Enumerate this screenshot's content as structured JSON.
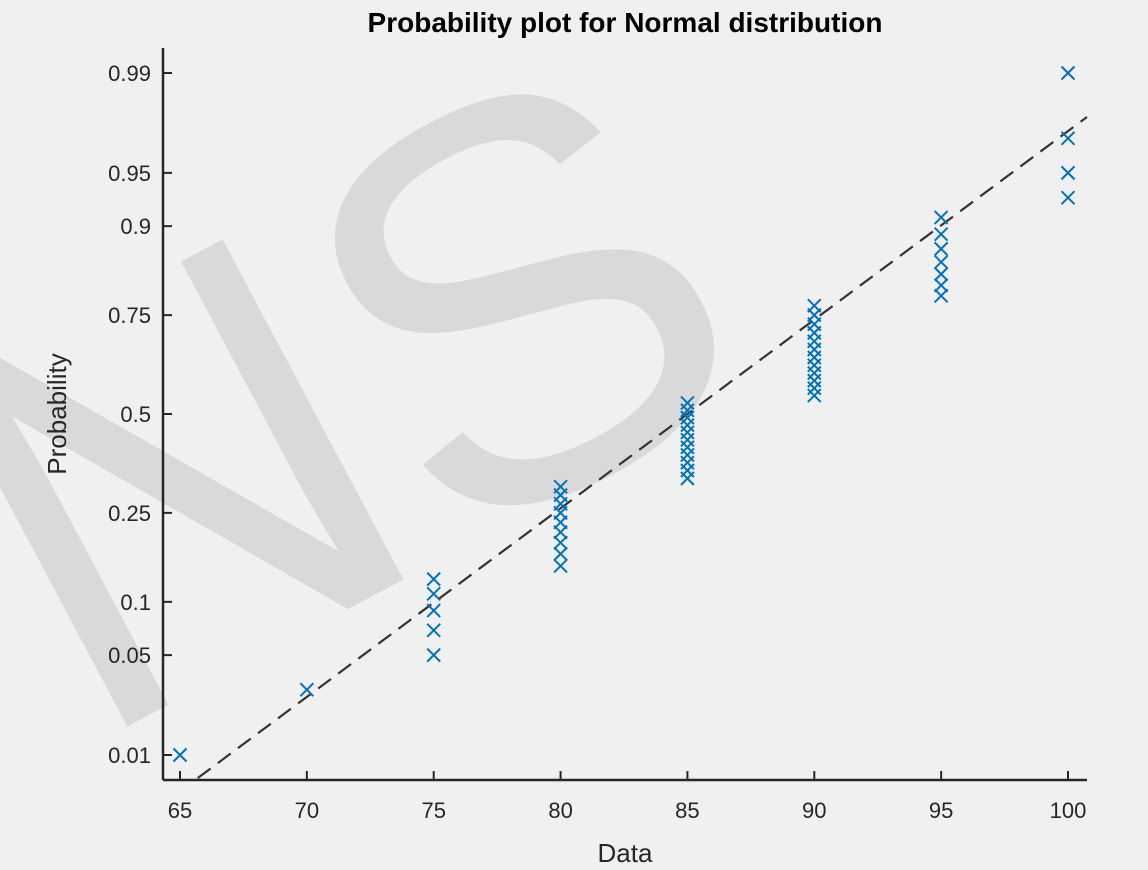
{
  "chart_data": {
    "type": "scatter",
    "title": "Probability plot for Normal distribution",
    "xlabel": "Data",
    "ylabel": "Probability",
    "xlim": [
      64,
      100.5
    ],
    "ylim": [
      0.007,
      0.993
    ],
    "y_scale": "normal-probability",
    "x_ticks": [
      65,
      70,
      75,
      80,
      85,
      90,
      95,
      100
    ],
    "y_ticks": [
      0.01,
      0.05,
      0.1,
      0.25,
      0.5,
      0.75,
      0.9,
      0.95,
      0.99
    ],
    "y_tick_labels": [
      "0.01",
      "0.05",
      "0.1",
      "0.25",
      "0.5",
      "0.75",
      "0.9",
      "0.95",
      "0.99"
    ],
    "grid": false,
    "legend": "none",
    "marker": "x",
    "series": [
      {
        "color": "#0072bd",
        "points": [
          {
            "x": 65,
            "y": 0.01
          },
          {
            "x": 70,
            "y": 0.03
          },
          {
            "x": 75,
            "y": 0.05
          },
          {
            "x": 75,
            "y": 0.07
          },
          {
            "x": 75,
            "y": 0.09
          },
          {
            "x": 75,
            "y": 0.11
          },
          {
            "x": 75,
            "y": 0.13
          },
          {
            "x": 80,
            "y": 0.15
          },
          {
            "x": 80,
            "y": 0.17
          },
          {
            "x": 80,
            "y": 0.19
          },
          {
            "x": 80,
            "y": 0.21
          },
          {
            "x": 80,
            "y": 0.23
          },
          {
            "x": 80,
            "y": 0.25
          },
          {
            "x": 80,
            "y": 0.27
          },
          {
            "x": 80,
            "y": 0.29
          },
          {
            "x": 80,
            "y": 0.31
          },
          {
            "x": 85,
            "y": 0.33
          },
          {
            "x": 85,
            "y": 0.35
          },
          {
            "x": 85,
            "y": 0.37
          },
          {
            "x": 85,
            "y": 0.39
          },
          {
            "x": 85,
            "y": 0.41
          },
          {
            "x": 85,
            "y": 0.43
          },
          {
            "x": 85,
            "y": 0.45
          },
          {
            "x": 85,
            "y": 0.47
          },
          {
            "x": 85,
            "y": 0.49
          },
          {
            "x": 85,
            "y": 0.51
          },
          {
            "x": 85,
            "y": 0.53
          },
          {
            "x": 90,
            "y": 0.55
          },
          {
            "x": 90,
            "y": 0.57
          },
          {
            "x": 90,
            "y": 0.59
          },
          {
            "x": 90,
            "y": 0.61
          },
          {
            "x": 90,
            "y": 0.63
          },
          {
            "x": 90,
            "y": 0.65
          },
          {
            "x": 90,
            "y": 0.67
          },
          {
            "x": 90,
            "y": 0.69
          },
          {
            "x": 90,
            "y": 0.71
          },
          {
            "x": 90,
            "y": 0.73
          },
          {
            "x": 90,
            "y": 0.75
          },
          {
            "x": 90,
            "y": 0.77
          },
          {
            "x": 95,
            "y": 0.79
          },
          {
            "x": 95,
            "y": 0.81
          },
          {
            "x": 95,
            "y": 0.83
          },
          {
            "x": 95,
            "y": 0.85
          },
          {
            "x": 95,
            "y": 0.87
          },
          {
            "x": 95,
            "y": 0.89
          },
          {
            "x": 95,
            "y": 0.91
          },
          {
            "x": 100,
            "y": 0.93
          },
          {
            "x": 100,
            "y": 0.95
          },
          {
            "x": 100,
            "y": 0.97
          },
          {
            "x": 100,
            "y": 0.99
          }
        ]
      }
    ],
    "reference_line": {
      "style": "dashed",
      "color": "#333333",
      "through": [
        {
          "x": 85,
          "y": 0.5
        },
        {
          "x": 90,
          "y": 0.74
        }
      ]
    }
  },
  "watermark": {
    "text": "NS",
    "color": "#d9d9d9"
  }
}
